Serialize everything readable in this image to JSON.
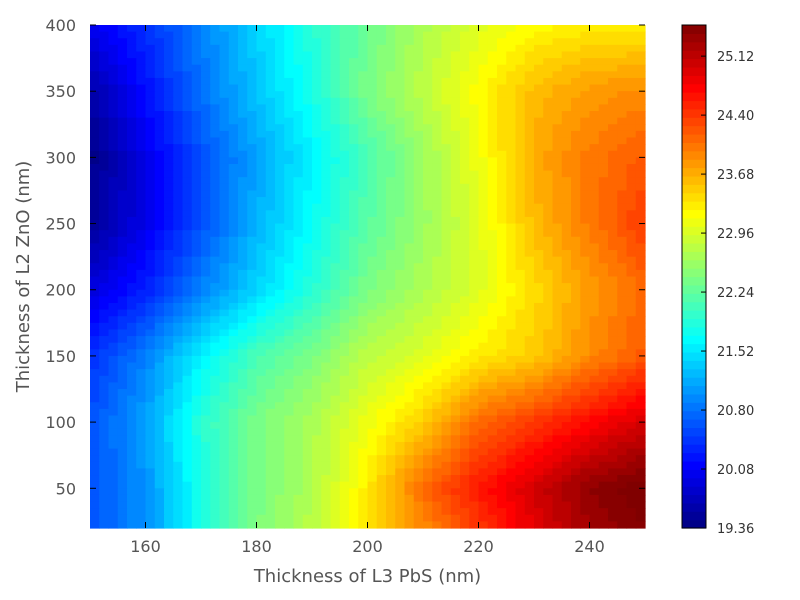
{
  "chart_data": {
    "type": "heatmap",
    "title": "",
    "xlabel": "Thickness of L3 PbS (nm)",
    "ylabel": "Thickness of L2 ZnO (nm)",
    "xlim": [
      150,
      250
    ],
    "ylim": [
      20,
      400
    ],
    "x_ticks": [
      "160",
      "180",
      "200",
      "220",
      "240"
    ],
    "x_tick_values": [
      160,
      180,
      200,
      220,
      240
    ],
    "y_ticks": [
      "50",
      "100",
      "150",
      "200",
      "250",
      "300",
      "350",
      "400"
    ],
    "y_tick_values": [
      50,
      100,
      150,
      200,
      250,
      300,
      350,
      400
    ],
    "x": [
      150,
      160,
      170,
      180,
      190,
      200,
      210,
      220,
      230,
      240,
      250
    ],
    "y": [
      20,
      50,
      100,
      150,
      200,
      250,
      300,
      350,
      400
    ],
    "z": [
      [
        20.6,
        21.0,
        21.8,
        22.4,
        22.8,
        23.3,
        23.9,
        24.4,
        24.9,
        25.3,
        25.5
      ],
      [
        20.6,
        21.0,
        21.8,
        22.4,
        22.7,
        23.3,
        24.1,
        24.6,
        25.0,
        25.4,
        25.6
      ],
      [
        20.6,
        21.1,
        21.9,
        22.4,
        22.7,
        23.1,
        23.5,
        24.1,
        24.4,
        24.7,
        25.0
      ],
      [
        20.4,
        20.9,
        21.6,
        22.1,
        22.4,
        22.8,
        23.0,
        23.3,
        23.5,
        23.9,
        24.2
      ],
      [
        19.9,
        20.3,
        20.9,
        21.4,
        21.9,
        22.4,
        22.7,
        23.0,
        23.4,
        23.8,
        24.1
      ],
      [
        19.5,
        20.0,
        20.6,
        21.2,
        21.7,
        22.2,
        22.6,
        23.0,
        23.6,
        24.0,
        24.4
      ],
      [
        19.4,
        20.0,
        20.6,
        21.1,
        21.6,
        22.1,
        22.6,
        23.1,
        23.7,
        24.0,
        24.2
      ],
      [
        19.6,
        20.2,
        20.8,
        21.3,
        21.8,
        22.4,
        22.8,
        23.2,
        23.6,
        23.8,
        23.9
      ],
      [
        20.0,
        20.4,
        20.9,
        21.4,
        21.9,
        22.3,
        22.7,
        23.0,
        23.2,
        23.3,
        23.3
      ]
    ],
    "colorbar": {
      "colormap": "jet",
      "min": 19.36,
      "max": 25.5,
      "ticks": [
        "19.36",
        "20.08",
        "20.80",
        "21.52",
        "22.24",
        "22.96",
        "23.68",
        "24.40",
        "25.12"
      ],
      "tick_values": [
        19.36,
        20.08,
        20.8,
        21.52,
        22.24,
        22.96,
        23.68,
        24.4,
        25.12
      ]
    },
    "grid": false,
    "legend": "colorbar-right"
  }
}
